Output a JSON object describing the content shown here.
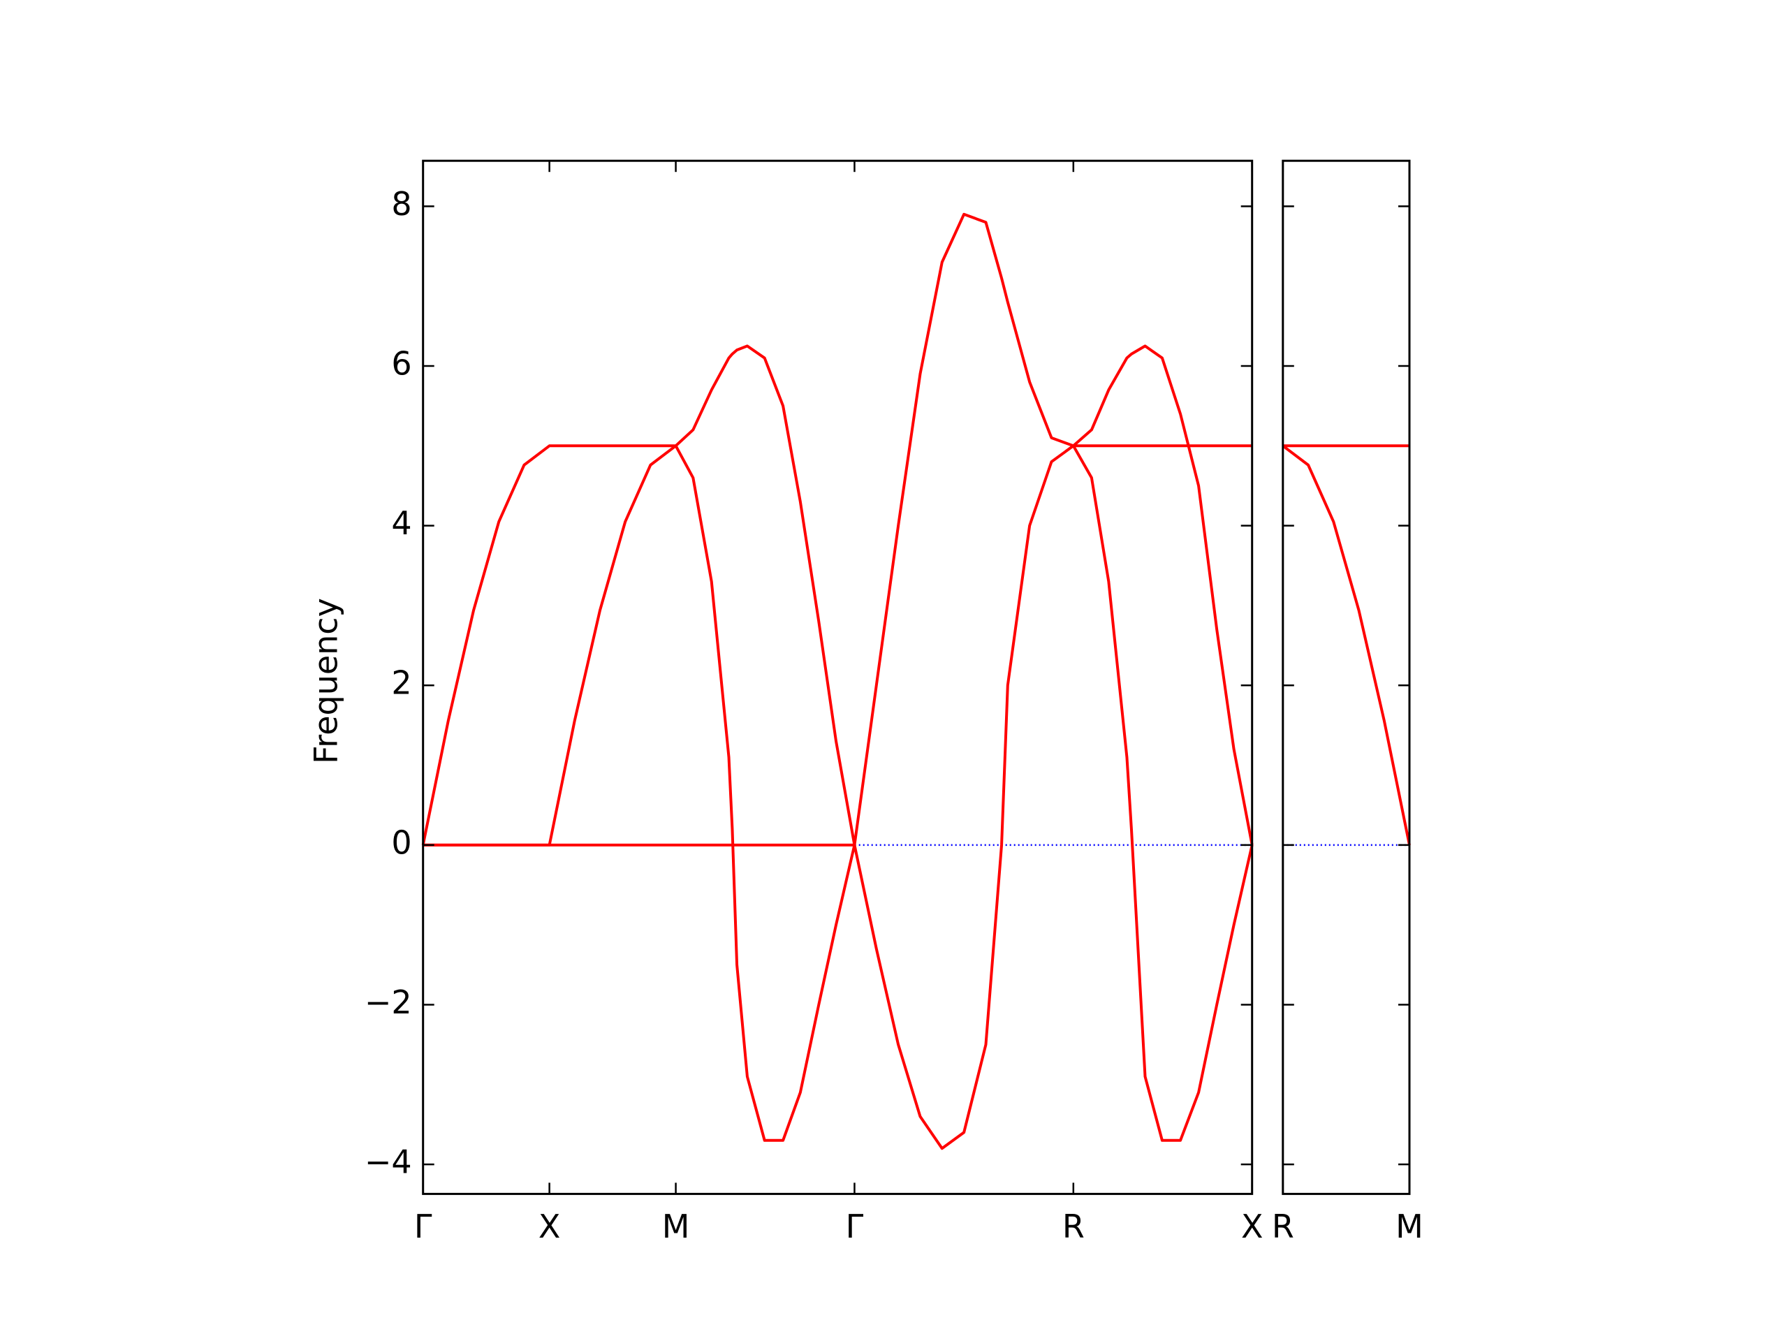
{
  "chart_data": [
    {
      "type": "line",
      "y_label": "Frequency",
      "xlim": [
        0,
        3.2802
      ],
      "ylim": [
        -4.37,
        8.57
      ],
      "xticks": [
        {
          "value": 0,
          "label": "Γ"
        },
        {
          "value": 0.5,
          "label": "X"
        },
        {
          "value": 1.0,
          "label": "M"
        },
        {
          "value": 1.7071,
          "label": "Γ"
        },
        {
          "value": 2.5731,
          "label": "R"
        },
        {
          "value": 3.2802,
          "label": "X"
        }
      ],
      "yticks": [
        {
          "value": -4,
          "label": "−4"
        },
        {
          "value": -2,
          "label": "−2"
        },
        0,
        2,
        4,
        6,
        8
      ],
      "zero_line": true,
      "zero_line_color": "#0000ff",
      "x": [
        0,
        0.1,
        0.2,
        0.3,
        0.4,
        0.5,
        0.6,
        0.7,
        0.8,
        0.9,
        1.0,
        1.0684,
        1.1414,
        1.2099,
        1.2235,
        1.2418,
        1.2828,
        1.3513,
        1.4243,
        1.4927,
        1.5657,
        1.6341,
        1.7071,
        1.7937,
        1.8803,
        1.9669,
        2.0535,
        2.1401,
        2.2267,
        2.2891,
        2.3133,
        2.3999,
        2.4865,
        2.5731,
        2.6452,
        2.7127,
        2.7848,
        2.8028,
        2.8569,
        2.9244,
        2.9965,
        3.0685,
        3.1406,
        3.2081,
        3.2802
      ],
      "series": [
        {
          "color": "#ff0000",
          "values": [
            0,
            1.56,
            2.94,
            4.05,
            4.76,
            5,
            5,
            5,
            5,
            5,
            5,
            5.2,
            5.7,
            6.1,
            6.15,
            6.2,
            6.25,
            6.1,
            5.5,
            4.3,
            2.8,
            1.3,
            0,
            2.0,
            4.0,
            5.9,
            7.3,
            7.9,
            7.8,
            7.1,
            6.8,
            5.8,
            5.1,
            5,
            5,
            5,
            5,
            5,
            5,
            5,
            5,
            5,
            5,
            5,
            5
          ]
        },
        {
          "color": "#ff0000",
          "values": [
            0,
            0,
            0,
            0,
            0,
            0,
            1.56,
            2.94,
            4.05,
            4.76,
            5,
            4.6,
            3.3,
            1.1,
            0.2,
            -1.5,
            -2.9,
            -3.7,
            -3.7,
            -3.1,
            -2.0,
            -1.0,
            0,
            -1.3,
            -2.5,
            -3.4,
            -3.8,
            -3.6,
            -2.5,
            0,
            2.0,
            4.0,
            4.8,
            5,
            5.2,
            5.7,
            6.1,
            6.15,
            6.25,
            6.1,
            5.4,
            4.5,
            2.7,
            1.2,
            0
          ]
        },
        {
          "color": "#ff0000",
          "values": [
            0,
            0,
            0,
            0,
            0,
            0,
            0,
            0,
            0,
            0,
            0,
            0,
            0,
            0,
            0,
            0,
            0,
            0,
            0,
            0,
            0,
            0,
            0,
            null,
            null,
            null,
            null,
            null,
            null,
            null,
            null,
            null,
            null,
            5,
            4.6,
            3.3,
            1.1,
            0.2,
            -2.9,
            -3.7,
            -3.7,
            -3.1,
            -2.0,
            -1.0,
            0
          ]
        }
      ]
    },
    {
      "type": "line",
      "xlim": [
        0,
        0.5
      ],
      "ylim": [
        -4.37,
        8.57
      ],
      "xticks": [
        {
          "value": 0,
          "label": "R"
        },
        {
          "value": 0.5,
          "label": "M"
        }
      ],
      "yticks": [
        -4,
        -2,
        0,
        2,
        4,
        6,
        8
      ],
      "zero_line": true,
      "zero_line_color": "#0000ff",
      "x": [
        0,
        0.1,
        0.2,
        0.3,
        0.4,
        0.5
      ],
      "series": [
        {
          "color": "#ff0000",
          "values": [
            5,
            5,
            5,
            5,
            5,
            5
          ]
        },
        {
          "color": "#ff0000",
          "values": [
            5,
            4.76,
            4.05,
            2.94,
            1.56,
            0
          ]
        }
      ]
    }
  ]
}
